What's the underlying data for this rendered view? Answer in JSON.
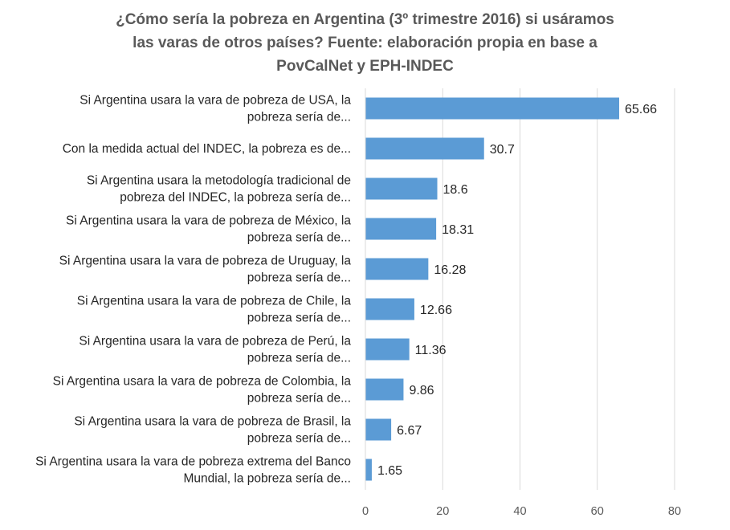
{
  "chart_data": {
    "type": "bar",
    "orientation": "horizontal",
    "title_lines": [
      "¿Cómo sería la pobreza en  Argentina (3º trimestre 2016)  si usáramos",
      "las varas de otros países? Fuente: elaboración propia en base a",
      "PovCalNet y EPH-INDEC"
    ],
    "categories": [
      [
        "Si Argentina usara la vara de pobreza de USA, la",
        "pobreza sería de..."
      ],
      [
        "Con la medida actual del INDEC, la pobreza es de..."
      ],
      [
        "Si Argentina usara la metodología tradicional de",
        "pobreza del INDEC, la pobreza sería de..."
      ],
      [
        "Si Argentina usara la vara de pobreza de México, la",
        "pobreza sería de..."
      ],
      [
        "Si Argentina usara la vara de pobreza de Uruguay, la",
        "pobreza sería de..."
      ],
      [
        "Si Argentina usara la vara de pobreza de Chile, la",
        "pobreza sería de..."
      ],
      [
        "Si Argentina usara la vara de pobreza de Perú, la",
        "pobreza sería de..."
      ],
      [
        "Si Argentina usara la vara de pobreza de Colombia, la",
        "pobreza sería de..."
      ],
      [
        "Si Argentina usara la vara de pobreza de Brasil, la",
        "pobreza sería de..."
      ],
      [
        "Si Argentina usara la vara de pobreza extrema del Banco",
        "Mundial, la pobreza sería de..."
      ]
    ],
    "values": [
      65.66,
      30.7,
      18.6,
      18.31,
      16.28,
      12.66,
      11.36,
      9.86,
      6.67,
      1.65
    ],
    "value_labels": [
      "65.66",
      "30.7",
      "18.6",
      "18.31",
      "16.28",
      "12.66",
      "11.36",
      "9.86",
      "6.67",
      "1.65"
    ],
    "xlim": [
      0,
      80
    ],
    "xticks": [
      0,
      20,
      40,
      60,
      80
    ],
    "grid": true,
    "bar_color": "#5B9BD5",
    "grid_color": "#D9D9D9"
  }
}
